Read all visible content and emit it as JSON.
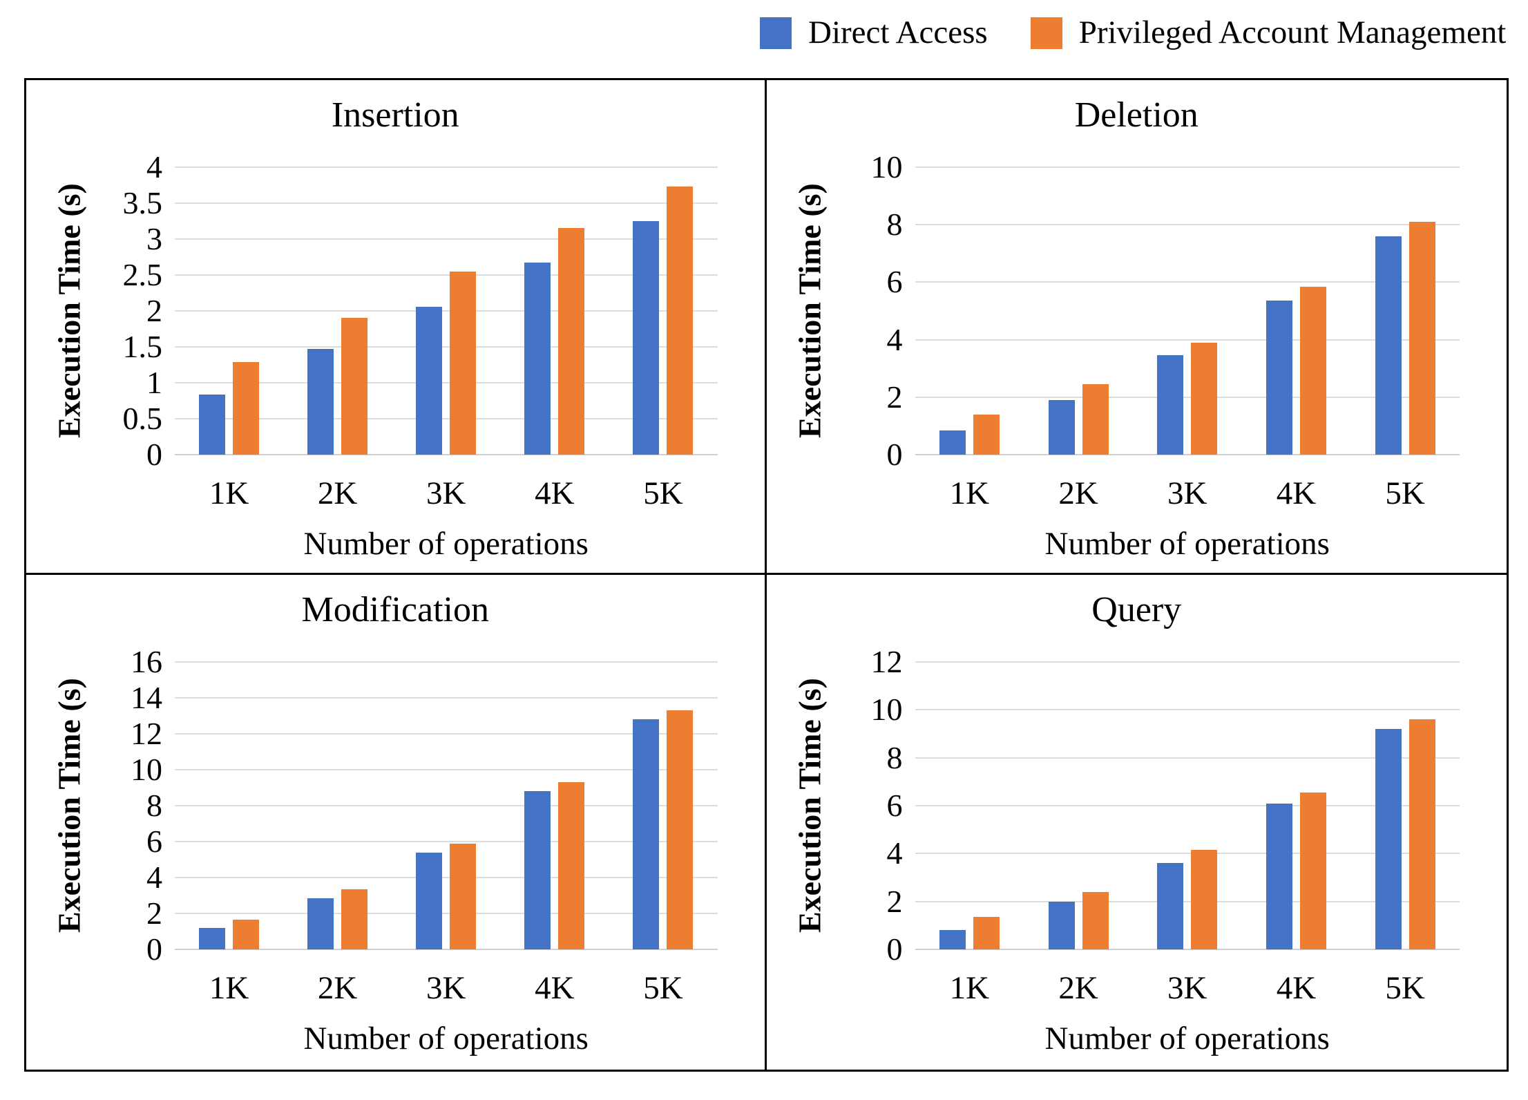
{
  "legend": {
    "items": [
      {
        "label": "Direct Access",
        "color": "#4472C4"
      },
      {
        "label": "Privileged Account Management",
        "color": "#ED7D31"
      }
    ]
  },
  "chart_data": [
    {
      "type": "bar",
      "title": "Insertion",
      "xlabel": "Number of operations",
      "ylabel": "Execution Time (s)",
      "categories": [
        "1K",
        "2K",
        "3K",
        "4K",
        "5K"
      ],
      "ylim": [
        0,
        4
      ],
      "yticks": [
        "4",
        "3.5",
        "3",
        "2.5",
        "2",
        "1.5",
        "1",
        "0.5",
        "0"
      ],
      "grid": true,
      "legend_position": "top",
      "series": [
        {
          "name": "Direct Access",
          "color": "#4472C4",
          "values": [
            0.84,
            1.47,
            2.06,
            2.67,
            3.25
          ]
        },
        {
          "name": "Privileged Account Management",
          "color": "#ED7D31",
          "values": [
            1.29,
            1.9,
            2.55,
            3.15,
            3.73
          ]
        }
      ]
    },
    {
      "type": "bar",
      "title": "Deletion",
      "xlabel": "Number of operations",
      "ylabel": "Execution Time (s)",
      "categories": [
        "1K",
        "2K",
        "3K",
        "4K",
        "5K"
      ],
      "ylim": [
        0,
        10
      ],
      "yticks": [
        "10",
        "8",
        "6",
        "4",
        "2",
        "0"
      ],
      "grid": true,
      "legend_position": "top",
      "series": [
        {
          "name": "Direct Access",
          "color": "#4472C4",
          "values": [
            0.85,
            1.9,
            3.45,
            5.35,
            7.6
          ]
        },
        {
          "name": "Privileged Account Management",
          "color": "#ED7D31",
          "values": [
            1.4,
            2.45,
            3.9,
            5.85,
            8.1
          ]
        }
      ]
    },
    {
      "type": "bar",
      "title": "Modification",
      "xlabel": "Number of operations",
      "ylabel": "Execution Time (s)",
      "categories": [
        "1K",
        "2K",
        "3K",
        "4K",
        "5K"
      ],
      "ylim": [
        0,
        16
      ],
      "yticks": [
        "16",
        "14",
        "12",
        "10",
        "8",
        "6",
        "4",
        "2",
        "0"
      ],
      "grid": true,
      "legend_position": "top",
      "series": [
        {
          "name": "Direct Access",
          "color": "#4472C4",
          "values": [
            1.2,
            2.85,
            5.4,
            8.8,
            12.8
          ]
        },
        {
          "name": "Privileged Account Management",
          "color": "#ED7D31",
          "values": [
            1.65,
            3.35,
            5.9,
            9.3,
            13.3
          ]
        }
      ]
    },
    {
      "type": "bar",
      "title": "Query",
      "xlabel": "Number of operations",
      "ylabel": "Execution Time (s)",
      "categories": [
        "1K",
        "2K",
        "3K",
        "4K",
        "5K"
      ],
      "ylim": [
        0,
        12
      ],
      "yticks": [
        "12",
        "10",
        "8",
        "6",
        "4",
        "2",
        "0"
      ],
      "grid": true,
      "legend_position": "top",
      "series": [
        {
          "name": "Direct Access",
          "color": "#4472C4",
          "values": [
            0.8,
            2.0,
            3.6,
            6.1,
            9.2
          ]
        },
        {
          "name": "Privileged Account Management",
          "color": "#ED7D31",
          "values": [
            1.35,
            2.4,
            4.15,
            6.55,
            9.6
          ]
        }
      ]
    }
  ]
}
